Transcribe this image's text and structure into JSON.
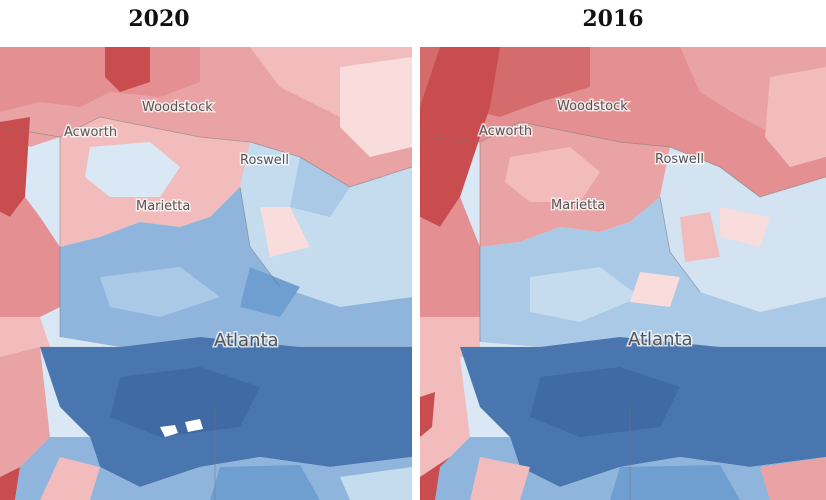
{
  "panels": [
    {
      "id": "left",
      "year": "2020",
      "places": {
        "woodstock": "Woodstock",
        "acworth": "Acworth",
        "roswell": "Roswell",
        "marietta": "Marietta",
        "atlanta": "Atlanta"
      }
    },
    {
      "id": "right",
      "year": "2016",
      "places": {
        "woodstock": "Woodstock",
        "acworth": "Acworth",
        "roswell": "Roswell",
        "marietta": "Marietta",
        "atlanta": "Atlanta"
      }
    }
  ],
  "colors": {
    "dark_red": "#c94d4f",
    "mid_red": "#e48f91",
    "light_red": "#f2bcbd",
    "pale_red": "#f9dcdc",
    "pale_blue": "#d9e8f4",
    "light_blue": "#a9c9e6",
    "mid_blue": "#6f9fd0",
    "dark_blue": "#4a76b0",
    "white_gap": "#ffffff"
  }
}
